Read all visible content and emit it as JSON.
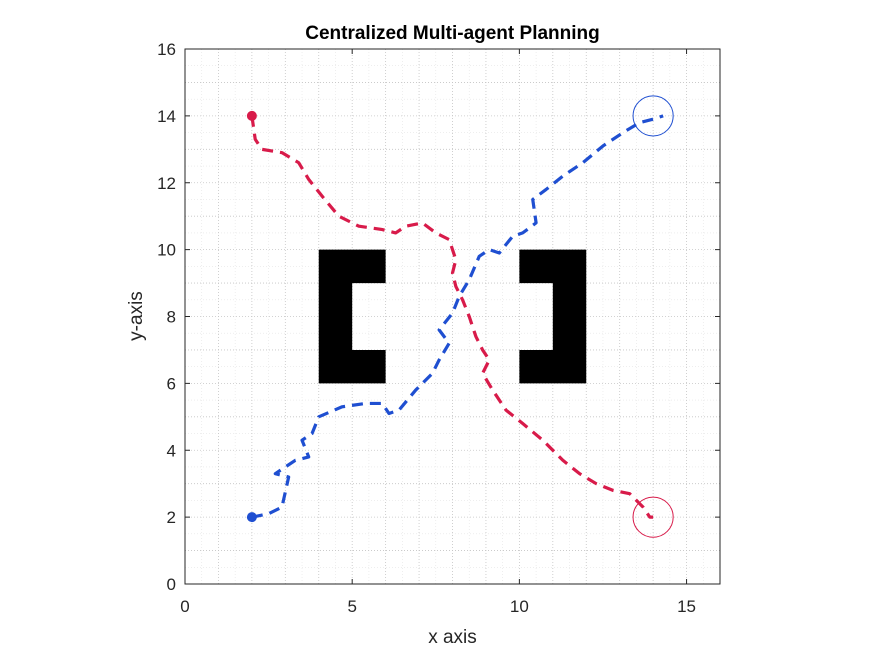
{
  "chart_data": {
    "type": "line",
    "title": "Centralized Multi-agent Planning",
    "xlabel": "x axis",
    "ylabel": "y-axis",
    "xlim": [
      0,
      16
    ],
    "ylim": [
      0,
      16
    ],
    "xticks": [
      0,
      5,
      10,
      15
    ],
    "yticks": [
      0,
      2,
      4,
      6,
      8,
      10,
      12,
      14,
      16
    ],
    "grid": true,
    "minor_grid": true,
    "obstacles": [
      {
        "name": "left-bracket",
        "polygon": [
          [
            4,
            6
          ],
          [
            6,
            6
          ],
          [
            6,
            7
          ],
          [
            5,
            7
          ],
          [
            5,
            9
          ],
          [
            6,
            9
          ],
          [
            6,
            10
          ],
          [
            4,
            10
          ]
        ]
      },
      {
        "name": "right-bracket",
        "polygon": [
          [
            10,
            6
          ],
          [
            12,
            6
          ],
          [
            12,
            10
          ],
          [
            10,
            10
          ],
          [
            10,
            9
          ],
          [
            11,
            9
          ],
          [
            11,
            7
          ],
          [
            10,
            7
          ]
        ]
      }
    ],
    "series": [
      {
        "color": "#d81b4a",
        "start": [
          2,
          14
        ],
        "goal": [
          14,
          2
        ],
        "goal_radius": 0.6,
        "x": [
          2.0,
          2.1,
          2.3,
          2.9,
          3.4,
          3.7,
          4.1,
          4.6,
          5.2,
          5.9,
          6.3,
          6.6,
          7.1,
          7.5,
          7.9,
          8.1,
          8.0,
          8.1,
          8.3,
          8.5,
          8.7,
          8.9,
          9.1,
          8.9,
          9.2,
          9.6,
          10.1,
          10.7,
          11.3,
          11.8,
          12.3,
          12.8,
          13.3,
          13.7,
          13.9,
          14.0
        ],
        "y": [
          14.0,
          13.3,
          13.0,
          12.9,
          12.6,
          12.1,
          11.6,
          11.0,
          10.7,
          10.6,
          10.5,
          10.7,
          10.8,
          10.5,
          10.3,
          9.7,
          9.3,
          8.9,
          8.5,
          8.0,
          7.4,
          7.0,
          6.7,
          6.3,
          5.8,
          5.2,
          4.8,
          4.3,
          3.7,
          3.3,
          3.0,
          2.8,
          2.7,
          2.3,
          2.0,
          2.0
        ]
      },
      {
        "color": "#1f4fd1",
        "start": [
          2,
          2
        ],
        "goal": [
          14,
          14
        ],
        "goal_radius": 0.6,
        "x": [
          2.0,
          2.5,
          2.9,
          3.1,
          2.7,
          3.3,
          3.7,
          3.5,
          3.8,
          4.0,
          4.7,
          5.4,
          5.9,
          6.1,
          6.4,
          6.9,
          7.4,
          7.6,
          7.9,
          7.6,
          8.0,
          8.2,
          8.5,
          8.8,
          9.1,
          9.4,
          9.8,
          10.1,
          10.5,
          10.4,
          10.8,
          11.3,
          11.9,
          12.5,
          13.1,
          13.6,
          14.0,
          14.3
        ],
        "y": [
          2.0,
          2.1,
          2.3,
          3.2,
          3.3,
          3.7,
          3.8,
          4.3,
          4.5,
          5.0,
          5.3,
          5.4,
          5.4,
          5.1,
          5.2,
          5.8,
          6.3,
          6.7,
          7.2,
          7.6,
          8.1,
          8.6,
          9.1,
          9.8,
          10.0,
          9.9,
          10.4,
          10.5,
          10.8,
          11.5,
          11.8,
          12.2,
          12.6,
          13.1,
          13.5,
          13.8,
          13.9,
          14.0
        ]
      }
    ]
  }
}
